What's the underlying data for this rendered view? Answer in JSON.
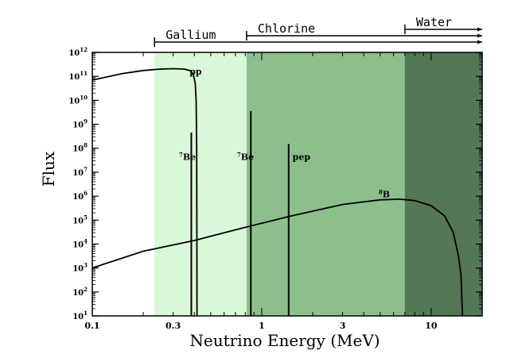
{
  "chart_data": {
    "type": "line",
    "title": "",
    "xlabel": "Neutrino Energy (MeV)",
    "ylabel": "Flux",
    "xscale": "log",
    "yscale": "log",
    "xlim": [
      0.1,
      20
    ],
    "ylim": [
      10,
      1000000000000.0
    ],
    "grid": false,
    "legend": "none",
    "x_ticks": [
      {
        "value": 0.1,
        "label": "0.1"
      },
      {
        "value": 0.3,
        "label": "0.3"
      },
      {
        "value": 1,
        "label": "1"
      },
      {
        "value": 3,
        "label": "3"
      },
      {
        "value": 10,
        "label": "10"
      }
    ],
    "y_ticks": [
      {
        "exp": 1,
        "base": "10",
        "sup": "1"
      },
      {
        "exp": 2,
        "base": "10",
        "sup": "2"
      },
      {
        "exp": 3,
        "base": "10",
        "sup": "3"
      },
      {
        "exp": 4,
        "base": "10",
        "sup": "4"
      },
      {
        "exp": 5,
        "base": "10",
        "sup": "5"
      },
      {
        "exp": 6,
        "base": "10",
        "sup": "6"
      },
      {
        "exp": 7,
        "base": "10",
        "sup": "7"
      },
      {
        "exp": 8,
        "base": "10",
        "sup": "8"
      },
      {
        "exp": 9,
        "base": "10",
        "sup": "9"
      },
      {
        "exp": 10,
        "base": "10",
        "sup": "10"
      },
      {
        "exp": 11,
        "base": "10",
        "sup": "11"
      },
      {
        "exp": 12,
        "base": "10",
        "sup": "12"
      }
    ],
    "detector_bands": [
      {
        "name": "Gallium",
        "from": 0.233,
        "to": 20,
        "color": "#d9f7d9"
      },
      {
        "name": "Chlorine",
        "from": 0.814,
        "to": 20,
        "color": "#8cbf8c"
      },
      {
        "name": "Water",
        "from": 7.0,
        "to": 20,
        "color": "#537853"
      }
    ],
    "series": [
      {
        "name": "pp",
        "label_sup": "",
        "label_base": "pp",
        "label_at": [
          0.375,
          120000000000.0
        ],
        "points": [
          [
            0.1,
            70000000000.0
          ],
          [
            0.15,
            130000000000.0
          ],
          [
            0.2,
            175000000000.0
          ],
          [
            0.25,
            200000000000.0
          ],
          [
            0.3,
            210000000000.0
          ],
          [
            0.35,
            200000000000.0
          ],
          [
            0.38,
            170000000000.0
          ],
          [
            0.395,
            120000000000.0
          ],
          [
            0.405,
            50000000000.0
          ],
          [
            0.41,
            10000000000.0
          ],
          [
            0.413,
            100000000.0
          ],
          [
            0.415,
            10
          ]
        ]
      },
      {
        "name": "8B",
        "label_sup": "8",
        "label_base": "B",
        "label_at": [
          4.9,
          900000.0
        ],
        "points": [
          [
            0.1,
            1000.0
          ],
          [
            0.2,
            5000.0
          ],
          [
            0.4,
            14000.0
          ],
          [
            0.8,
            50000.0
          ],
          [
            1.5,
            150000.0
          ],
          [
            3,
            450000.0
          ],
          [
            5,
            700000.0
          ],
          [
            6.5,
            750000.0
          ],
          [
            8,
            650000.0
          ],
          [
            10,
            400000.0
          ],
          [
            12,
            150000.0
          ],
          [
            13.5,
            30000.0
          ],
          [
            14.5,
            3000.0
          ],
          [
            15,
            500.0
          ],
          [
            15.3,
            10
          ]
        ]
      }
    ],
    "lines": [
      {
        "name": "7Be",
        "label_sup": "7",
        "label_base": "Be",
        "x": 0.384,
        "flux": 450000000.0,
        "label_at": [
          0.325,
          32000000.0
        ]
      },
      {
        "name": "7Be",
        "label_sup": "7",
        "label_base": "Be",
        "x": 0.862,
        "flux": 3500000000.0,
        "label_at": [
          0.715,
          32000000.0
        ]
      },
      {
        "name": "pep",
        "label_sup": "",
        "label_base": "pep",
        "x": 1.442,
        "flux": 150000000.0,
        "label_at": [
          1.52,
          32000000.0
        ]
      }
    ]
  }
}
